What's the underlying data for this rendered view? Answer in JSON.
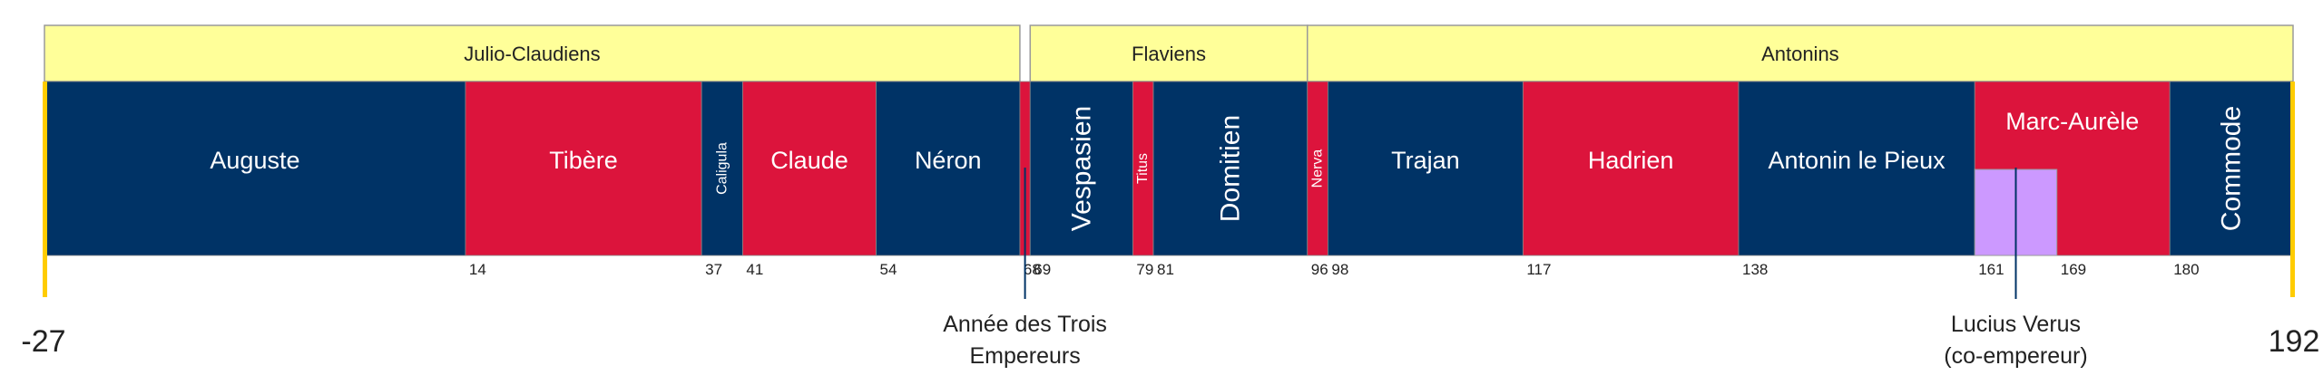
{
  "timeline": {
    "start_label": "-27",
    "end_label": "192",
    "start_year": -27,
    "end_year": 192,
    "colors": {
      "dynasty_fill": "#ffff99",
      "blue": "#003366",
      "red": "#dc143c",
      "co_emperor": "#cc99ff",
      "edge": "#ffcc00",
      "text_light": "#ffffff",
      "text_dark": "#222222"
    },
    "dynasties": [
      {
        "name": "Julio-Claudiens",
        "start": -27,
        "end": 68
      },
      {
        "name": "Flaviens",
        "start": 69,
        "end": 96
      },
      {
        "name": "Antonins",
        "start": 96,
        "end": 192
      }
    ],
    "emperors": [
      {
        "name": "Auguste",
        "start": -27,
        "end": 14,
        "color": "blue",
        "vertical": false,
        "size": "normal"
      },
      {
        "name": "Tibère",
        "start": 14,
        "end": 37,
        "color": "red",
        "vertical": false,
        "size": "normal"
      },
      {
        "name": "Caligula",
        "start": 37,
        "end": 41,
        "color": "blue",
        "vertical": true,
        "size": "small"
      },
      {
        "name": "Claude",
        "start": 41,
        "end": 54,
        "color": "red",
        "vertical": false,
        "size": "normal"
      },
      {
        "name": "Néron",
        "start": 54,
        "end": 68,
        "color": "blue",
        "vertical": false,
        "size": "normal"
      },
      {
        "name": "",
        "start": 68,
        "end": 69,
        "color": "red",
        "vertical": false,
        "size": "normal"
      },
      {
        "name": "Vespasien",
        "start": 69,
        "end": 79,
        "color": "blue",
        "vertical": true,
        "size": "large"
      },
      {
        "name": "Titus",
        "start": 79,
        "end": 81,
        "color": "red",
        "vertical": true,
        "size": "small"
      },
      {
        "name": "Domitien",
        "start": 81,
        "end": 96,
        "color": "blue",
        "vertical": true,
        "size": "large"
      },
      {
        "name": "Nerva",
        "start": 96,
        "end": 98,
        "color": "red",
        "vertical": true,
        "size": "small"
      },
      {
        "name": "Trajan",
        "start": 98,
        "end": 117,
        "color": "blue",
        "vertical": false,
        "size": "normal"
      },
      {
        "name": "Hadrien",
        "start": 117,
        "end": 138,
        "color": "red",
        "vertical": false,
        "size": "normal"
      },
      {
        "name": "Antonin le Pieux",
        "start": 138,
        "end": 161,
        "color": "blue",
        "vertical": false,
        "size": "normal"
      },
      {
        "name": "Marc-Aurèle",
        "start": 161,
        "end": 180,
        "color": "red",
        "vertical": false,
        "size": "top"
      },
      {
        "name": "Commode",
        "start": 180,
        "end": 192,
        "color": "blue",
        "vertical": true,
        "size": "large"
      }
    ],
    "co_emperor": {
      "start": 161,
      "end": 169
    },
    "year_ticks": [
      "14",
      "37",
      "41",
      "54",
      "68",
      "69",
      "79",
      "81",
      "96",
      "98",
      "117",
      "138",
      "161",
      "169",
      "180"
    ],
    "annotations": [
      {
        "line1": "Année des Trois",
        "line2": "Empereurs",
        "year": 68.5
      },
      {
        "line1": "Lucius Verus",
        "line2": "(co-empereur)",
        "year": 165
      }
    ]
  }
}
